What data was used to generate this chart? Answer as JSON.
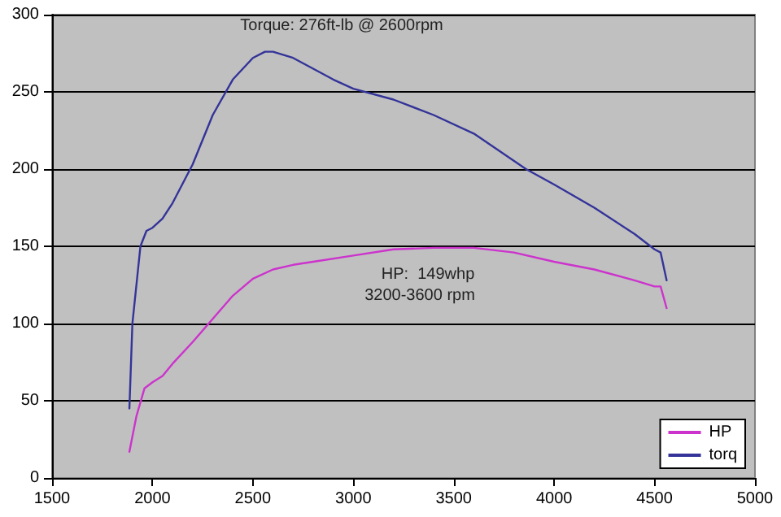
{
  "chart_data": {
    "type": "line",
    "annotations": [
      "Torque: 276ft-lb @ 2600rpm",
      "HP:  149whp",
      "3200-3600 rpm"
    ],
    "series": [
      {
        "name": "HP",
        "color": "#cc33cc",
        "x": [
          1885,
          1920,
          1960,
          2000,
          2050,
          2100,
          2200,
          2300,
          2400,
          2500,
          2600,
          2700,
          2800,
          3000,
          3200,
          3400,
          3600,
          3800,
          4000,
          4200,
          4400,
          4500,
          4530,
          4560
        ],
        "values": [
          17,
          40,
          58,
          62,
          66,
          74,
          88,
          103,
          118,
          129,
          135,
          138,
          140,
          144,
          148,
          149,
          149,
          146,
          140,
          135,
          128,
          124,
          124,
          110
        ]
      },
      {
        "name": "torq",
        "color": "#333399",
        "x": [
          1885,
          1900,
          1940,
          1970,
          2000,
          2050,
          2100,
          2200,
          2300,
          2400,
          2500,
          2560,
          2600,
          2700,
          2800,
          2900,
          3000,
          3200,
          3400,
          3600,
          3860,
          4000,
          4200,
          4400,
          4500,
          4530,
          4560
        ],
        "values": [
          45,
          100,
          150,
          160,
          162,
          168,
          178,
          203,
          235,
          258,
          272,
          276,
          276,
          272,
          265,
          258,
          252,
          245,
          235,
          223,
          200,
          190,
          175,
          158,
          148,
          146,
          128
        ]
      }
    ],
    "xlim": [
      1500,
      5000
    ],
    "xticks": [
      1500,
      2000,
      2500,
      3000,
      3500,
      4000,
      4500,
      5000
    ],
    "ylim": [
      0,
      300
    ],
    "yticks": [
      0,
      50,
      100,
      150,
      200,
      250,
      300
    ],
    "grid": "y",
    "legend": "bottom right",
    "marker": "none",
    "line_style": "solid"
  }
}
